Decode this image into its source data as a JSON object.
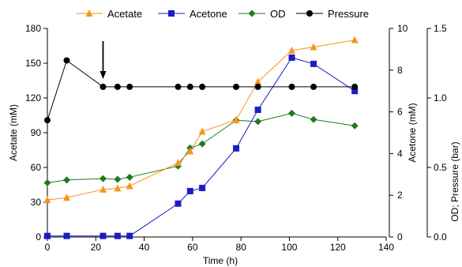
{
  "chart_data": {
    "type": "line",
    "xlabel": "Time (h)",
    "xlim": [
      0,
      140
    ],
    "xticks": [
      0,
      20,
      40,
      60,
      80,
      100,
      120,
      140
    ],
    "axes": {
      "left": {
        "label": "Acetate (mM)",
        "lim": [
          0,
          180
        ],
        "ticks": [
          0,
          30,
          60,
          90,
          120,
          150,
          180
        ]
      },
      "right1": {
        "label": "Acetone (mM)",
        "lim": [
          0,
          10
        ],
        "ticks": [
          0,
          2,
          4,
          6,
          8,
          10
        ]
      },
      "right2": {
        "label": "OD; Pressure (bar)",
        "lim": [
          0,
          1.5
        ],
        "ticks": [
          "0.0",
          "0.5",
          "1.0",
          "1.5"
        ]
      }
    },
    "series": [
      {
        "name": "Acetate",
        "axis": "left",
        "color": "#F7941D",
        "marker": "triangle",
        "x": [
          0,
          8,
          23,
          29,
          34,
          54,
          59,
          64,
          78,
          87,
          101,
          110,
          127
        ],
        "y": [
          32,
          34,
          41,
          42,
          44,
          64,
          74,
          91,
          101,
          134,
          161,
          164,
          170
        ]
      },
      {
        "name": "Acetone",
        "axis": "right1",
        "color": "#1C1CC6",
        "marker": "square",
        "x": [
          0,
          8,
          23,
          29,
          34,
          54,
          59,
          64,
          78,
          87,
          101,
          110,
          127
        ],
        "y": [
          0.05,
          0.05,
          0.05,
          0.05,
          0.05,
          1.6,
          2.2,
          2.35,
          4.25,
          6.1,
          8.6,
          8.3,
          7.0
        ]
      },
      {
        "name": "OD",
        "axis": "right2",
        "color": "#1E7A1E",
        "marker": "diamond",
        "x": [
          0,
          8,
          23,
          29,
          34,
          54,
          59,
          64,
          78,
          87,
          101,
          110,
          127
        ],
        "y": [
          0.39,
          0.41,
          0.42,
          0.415,
          0.43,
          0.51,
          0.64,
          0.67,
          0.84,
          0.83,
          0.89,
          0.845,
          0.8
        ]
      },
      {
        "name": "Pressure",
        "axis": "right2",
        "color": "#000000",
        "marker": "circle",
        "x": [
          0,
          8,
          23,
          29,
          34,
          54,
          59,
          64,
          78,
          87,
          101,
          110,
          127
        ],
        "y": [
          0.84,
          1.27,
          1.08,
          1.08,
          1.08,
          1.08,
          1.08,
          1.08,
          1.08,
          1.08,
          1.08,
          1.08,
          1.08
        ]
      }
    ],
    "annotations": [
      {
        "type": "arrow-down",
        "x": 23
      }
    ],
    "legend_position": "top"
  }
}
